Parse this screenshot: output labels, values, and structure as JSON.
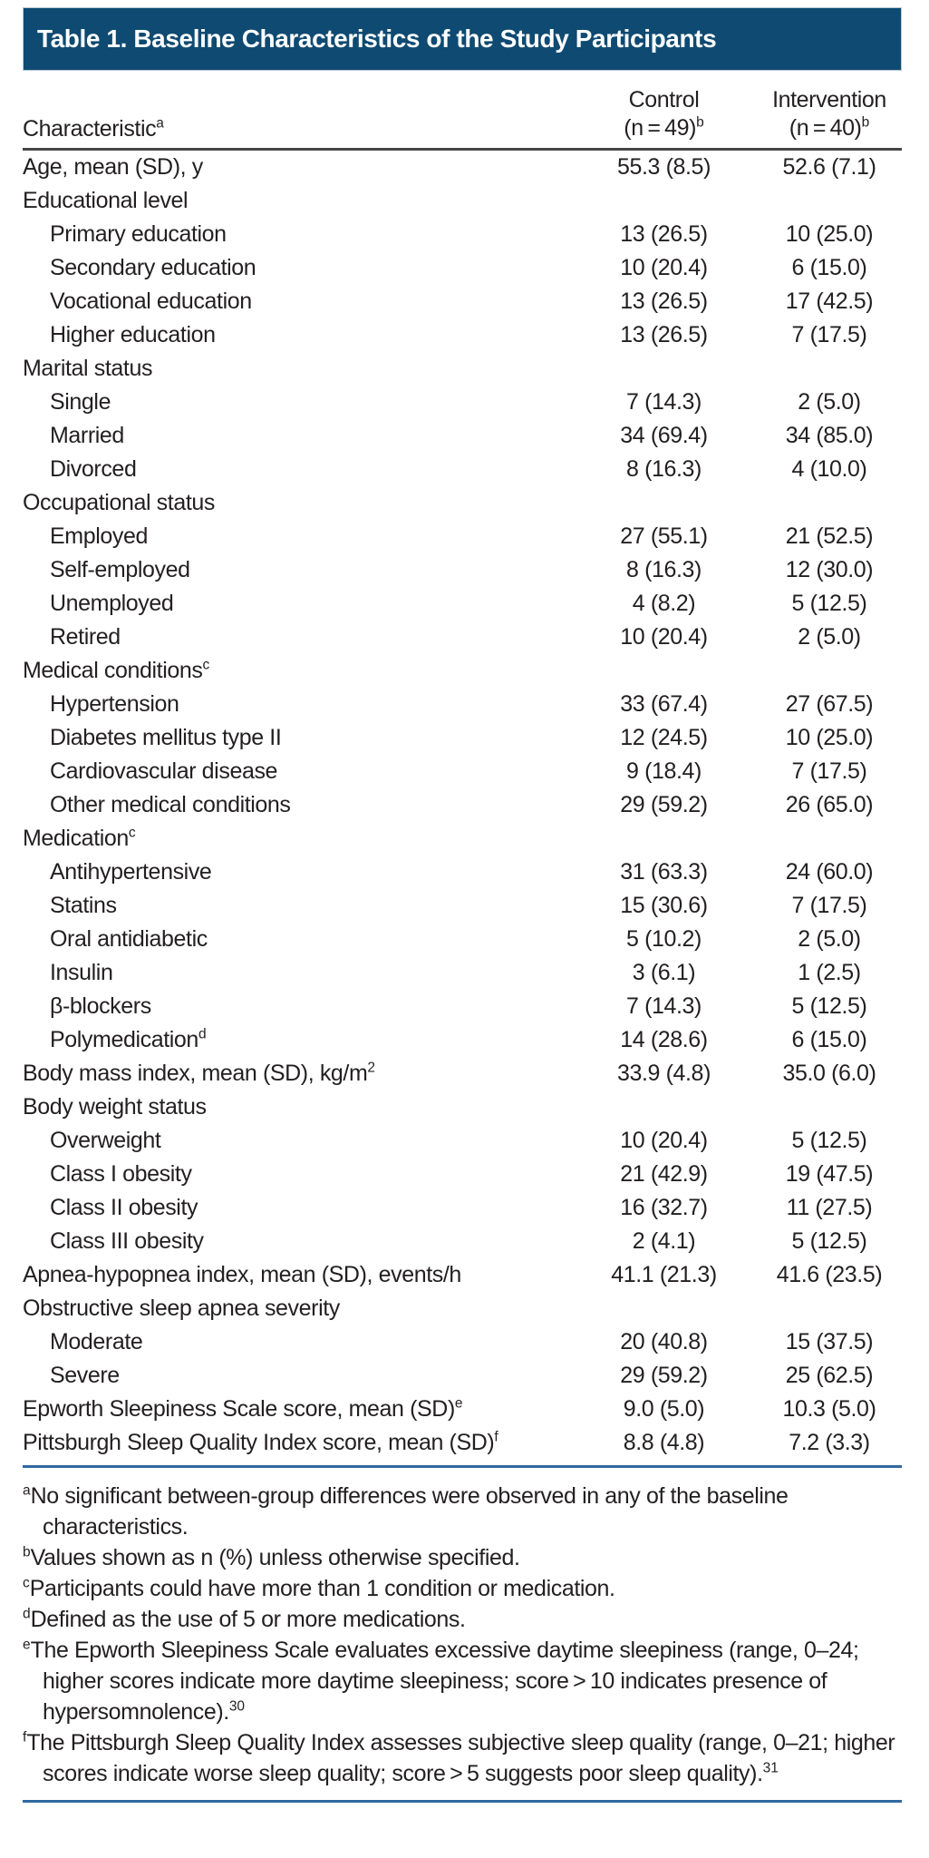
{
  "title": "Table 1. Baseline Characteristics of the Study Participants",
  "columns": {
    "characteristic": {
      "label": "Characteristic",
      "sup": "a"
    },
    "control": {
      "name": "Control",
      "n": "(n = 49)",
      "sup": "b"
    },
    "intervention": {
      "name": "Intervention",
      "n": "(n = 40)",
      "sup": "b"
    }
  },
  "table": {
    "rows": [
      {
        "label": "Age, mean (SD), y",
        "sup": "",
        "control": "55.3 (8.5)",
        "intervention": "52.6 (7.1)",
        "indent": 0
      },
      {
        "label": "Educational level",
        "sup": "",
        "control": "",
        "intervention": "",
        "indent": 0
      },
      {
        "label": "Primary education",
        "sup": "",
        "control": "13 (26.5)",
        "intervention": "10 (25.0)",
        "indent": 1
      },
      {
        "label": "Secondary education",
        "sup": "",
        "control": "10 (20.4)",
        "intervention": "6 (15.0)",
        "indent": 1
      },
      {
        "label": "Vocational education",
        "sup": "",
        "control": "13 (26.5)",
        "intervention": "17 (42.5)",
        "indent": 1
      },
      {
        "label": "Higher education",
        "sup": "",
        "control": "13 (26.5)",
        "intervention": "7 (17.5)",
        "indent": 1
      },
      {
        "label": "Marital status",
        "sup": "",
        "control": "",
        "intervention": "",
        "indent": 0
      },
      {
        "label": "Single",
        "sup": "",
        "control": "7 (14.3)",
        "intervention": "2 (5.0)",
        "indent": 1
      },
      {
        "label": "Married",
        "sup": "",
        "control": "34 (69.4)",
        "intervention": "34 (85.0)",
        "indent": 1
      },
      {
        "label": "Divorced",
        "sup": "",
        "control": "8 (16.3)",
        "intervention": "4 (10.0)",
        "indent": 1
      },
      {
        "label": "Occupational status",
        "sup": "",
        "control": "",
        "intervention": "",
        "indent": 0
      },
      {
        "label": "Employed",
        "sup": "",
        "control": "27 (55.1)",
        "intervention": "21 (52.5)",
        "indent": 1
      },
      {
        "label": "Self-employed",
        "sup": "",
        "control": "8 (16.3)",
        "intervention": "12 (30.0)",
        "indent": 1
      },
      {
        "label": "Unemployed",
        "sup": "",
        "control": "4 (8.2)",
        "intervention": "5 (12.5)",
        "indent": 1
      },
      {
        "label": "Retired",
        "sup": "",
        "control": "10 (20.4)",
        "intervention": "2 (5.0)",
        "indent": 1
      },
      {
        "label": "Medical conditions",
        "sup": "c",
        "control": "",
        "intervention": "",
        "indent": 0
      },
      {
        "label": "Hypertension",
        "sup": "",
        "control": "33 (67.4)",
        "intervention": "27 (67.5)",
        "indent": 1
      },
      {
        "label": "Diabetes mellitus type II",
        "sup": "",
        "control": "12 (24.5)",
        "intervention": "10 (25.0)",
        "indent": 1
      },
      {
        "label": "Cardiovascular disease",
        "sup": "",
        "control": "9 (18.4)",
        "intervention": "7 (17.5)",
        "indent": 1
      },
      {
        "label": "Other medical conditions",
        "sup": "",
        "control": "29 (59.2)",
        "intervention": "26 (65.0)",
        "indent": 1
      },
      {
        "label": "Medication",
        "sup": "c",
        "control": "",
        "intervention": "",
        "indent": 0
      },
      {
        "label": "Antihypertensive",
        "sup": "",
        "control": "31 (63.3)",
        "intervention": "24 (60.0)",
        "indent": 1
      },
      {
        "label": "Statins",
        "sup": "",
        "control": "15 (30.6)",
        "intervention": "7 (17.5)",
        "indent": 1
      },
      {
        "label": "Oral antidiabetic",
        "sup": "",
        "control": "5 (10.2)",
        "intervention": "2 (5.0)",
        "indent": 1
      },
      {
        "label": "Insulin",
        "sup": "",
        "control": "3 (6.1)",
        "intervention": "1 (2.5)",
        "indent": 1
      },
      {
        "label": "β-blockers",
        "sup": "",
        "control": "7 (14.3)",
        "intervention": "5 (12.5)",
        "indent": 1
      },
      {
        "label": "Polymedication",
        "sup": "d",
        "control": "14 (28.6)",
        "intervention": "6 (15.0)",
        "indent": 1
      },
      {
        "label": "Body mass index, mean (SD), kg/m",
        "sup": "2",
        "control": "33.9 (4.8)",
        "intervention": "35.0 (6.0)",
        "indent": 0
      },
      {
        "label": "Body weight status",
        "sup": "",
        "control": "",
        "intervention": "",
        "indent": 0
      },
      {
        "label": "Overweight",
        "sup": "",
        "control": "10 (20.4)",
        "intervention": "5 (12.5)",
        "indent": 1
      },
      {
        "label": "Class I obesity",
        "sup": "",
        "control": "21 (42.9)",
        "intervention": "19 (47.5)",
        "indent": 1
      },
      {
        "label": "Class II obesity",
        "sup": "",
        "control": "16 (32.7)",
        "intervention": "11 (27.5)",
        "indent": 1
      },
      {
        "label": "Class III obesity",
        "sup": "",
        "control": "2 (4.1)",
        "intervention": "5 (12.5)",
        "indent": 1
      },
      {
        "label": "Apnea-hypopnea index, mean (SD), events/h",
        "sup": "",
        "control": "41.1 (21.3)",
        "intervention": "41.6 (23.5)",
        "indent": 0
      },
      {
        "label": "Obstructive sleep apnea severity",
        "sup": "",
        "control": "",
        "intervention": "",
        "indent": 0
      },
      {
        "label": "Moderate",
        "sup": "",
        "control": "20 (40.8)",
        "intervention": "15 (37.5)",
        "indent": 1
      },
      {
        "label": "Severe",
        "sup": "",
        "control": "29 (59.2)",
        "intervention": "25 (62.5)",
        "indent": 1
      },
      {
        "label": "Epworth Sleepiness Scale score, mean (SD)",
        "sup": "e",
        "control": "9.0 (5.0)",
        "intervention": "10.3 (5.0)",
        "indent": 0
      },
      {
        "label": "Pittsburgh Sleep Quality Index score, mean (SD)",
        "sup": "f",
        "control": "8.8 (4.8)",
        "intervention": "7.2 (3.3)",
        "indent": 0
      }
    ]
  },
  "footnotes": [
    {
      "sup": "a",
      "text": "No significant between-group differences were observed in any of the baseline characteristics.",
      "ref": ""
    },
    {
      "sup": "b",
      "text": "Values shown as n (%) unless otherwise specified.",
      "ref": ""
    },
    {
      "sup": "c",
      "text": "Participants could have more than 1 condition or medication.",
      "ref": ""
    },
    {
      "sup": "d",
      "text": "Defined as the use of 5 or more medications.",
      "ref": ""
    },
    {
      "sup": "e",
      "text": "The Epworth Sleepiness Scale evaluates excessive daytime sleepiness (range, 0–24; higher scores indicate more daytime sleepiness; score > 10 indicates presence of hypersomnolence).",
      "ref": "30"
    },
    {
      "sup": "f",
      "text": "The Pittsburgh Sleep Quality Index assesses subjective sleep quality (range, 0–21; higher scores indicate worse sleep quality; score > 5 suggests poor sleep quality).",
      "ref": "31"
    }
  ],
  "colors": {
    "header_bar": "#0e4a71",
    "rule_dark": "#454547",
    "rule_blue": "#31699f",
    "text": "#231f20",
    "title_text": "#ffffff"
  }
}
